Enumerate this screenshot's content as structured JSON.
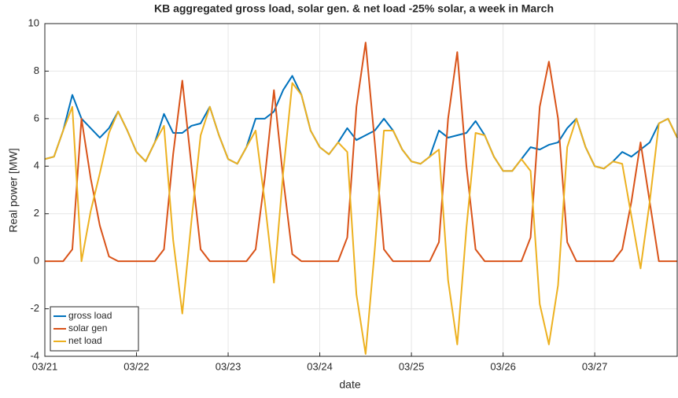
{
  "chart_data": {
    "type": "line",
    "title": "KB aggregated gross load, solar gen. & net load -25% solar, a week in March",
    "x_label": "date",
    "y_label": "Real power [MW]",
    "x": [
      0,
      0.1,
      0.2,
      0.3,
      0.4,
      0.5,
      0.6,
      0.7,
      0.8,
      0.9,
      1,
      1.1,
      1.2,
      1.3,
      1.4,
      1.5,
      1.6,
      1.7,
      1.8,
      1.9,
      2,
      2.1,
      2.2,
      2.3,
      2.4,
      2.5,
      2.6,
      2.7,
      2.8,
      2.9,
      3,
      3.1,
      3.2,
      3.3,
      3.4,
      3.5,
      3.6,
      3.7,
      3.8,
      3.9,
      4,
      4.1,
      4.2,
      4.3,
      4.4,
      4.5,
      4.6,
      4.7,
      4.8,
      4.9,
      5,
      5.1,
      5.2,
      5.3,
      5.4,
      5.5,
      5.6,
      5.7,
      5.8,
      5.9,
      6,
      6.1,
      6.2,
      6.3,
      6.4,
      6.5,
      6.6,
      6.7,
      6.8,
      6.9
    ],
    "series": [
      {
        "name": "gross load",
        "color": "#0072bd",
        "values": [
          4.3,
          4.4,
          5.5,
          7.0,
          6.0,
          5.6,
          5.2,
          5.6,
          6.3,
          5.5,
          4.6,
          4.2,
          5.0,
          6.2,
          5.4,
          5.4,
          5.7,
          5.8,
          6.5,
          5.3,
          4.3,
          4.1,
          4.8,
          6.0,
          6.0,
          6.3,
          7.2,
          7.8,
          7.0,
          5.5,
          4.8,
          4.5,
          5.0,
          5.6,
          5.1,
          5.3,
          5.5,
          6.0,
          5.5,
          4.7,
          4.2,
          4.1,
          4.4,
          5.5,
          5.2,
          5.3,
          5.4,
          5.9,
          5.3,
          4.4,
          3.8,
          3.8,
          4.3,
          4.8,
          4.7,
          4.9,
          5.0,
          5.6,
          6.0,
          4.8,
          4.0,
          3.9,
          4.2,
          4.6,
          4.4,
          4.7,
          5.0,
          5.8,
          6.0,
          5.2
        ]
      },
      {
        "name": "solar gen",
        "color": "#d95319",
        "values": [
          0,
          0,
          0,
          0.5,
          6.0,
          3.5,
          1.5,
          0.2,
          0,
          0,
          0,
          0,
          0,
          0.5,
          4.5,
          7.6,
          4.0,
          0.5,
          0,
          0,
          0,
          0,
          0,
          0.5,
          3.5,
          7.2,
          3.5,
          0.3,
          0,
          0,
          0,
          0,
          0,
          1.0,
          6.5,
          9.2,
          5.0,
          0.5,
          0,
          0,
          0,
          0,
          0,
          0.8,
          6.0,
          8.8,
          4.0,
          0.5,
          0,
          0,
          0,
          0,
          0,
          1.0,
          6.5,
          8.4,
          6.0,
          0.8,
          0,
          0,
          0,
          0,
          0,
          0.5,
          2.5,
          5.0,
          2.5,
          0,
          0,
          0
        ]
      },
      {
        "name": "net load",
        "color": "#edb120",
        "values": [
          4.3,
          4.4,
          5.5,
          6.5,
          0,
          2.1,
          3.7,
          5.4,
          6.3,
          5.5,
          4.6,
          4.2,
          5.0,
          5.7,
          0.9,
          -2.2,
          1.7,
          5.3,
          6.5,
          5.3,
          4.3,
          4.1,
          4.8,
          5.5,
          2.5,
          -0.9,
          3.7,
          7.5,
          7.0,
          5.5,
          4.8,
          4.5,
          5.0,
          4.6,
          -1.4,
          -3.9,
          0.5,
          5.5,
          5.5,
          4.7,
          4.2,
          4.1,
          4.4,
          4.7,
          -0.8,
          -3.5,
          1.4,
          5.4,
          5.3,
          4.4,
          3.8,
          3.8,
          4.3,
          3.8,
          -1.8,
          -3.5,
          -1.0,
          4.8,
          6.0,
          4.8,
          4.0,
          3.9,
          4.2,
          4.1,
          1.9,
          -0.3,
          2.5,
          5.8,
          6.0,
          5.2
        ]
      }
    ],
    "xlim": [
      0,
      6.9
    ],
    "xticks": [
      {
        "value": 0,
        "label": "03/21"
      },
      {
        "value": 1,
        "label": "03/22"
      },
      {
        "value": 2,
        "label": "03/23"
      },
      {
        "value": 3,
        "label": "03/24"
      },
      {
        "value": 4,
        "label": "03/25"
      },
      {
        "value": 5,
        "label": "03/26"
      },
      {
        "value": 6,
        "label": "03/27"
      }
    ],
    "ylim": [
      -4,
      10
    ],
    "yticks": [
      -4,
      -2,
      0,
      2,
      4,
      6,
      8,
      10
    ],
    "grid": true,
    "legend": "lower-left"
  }
}
